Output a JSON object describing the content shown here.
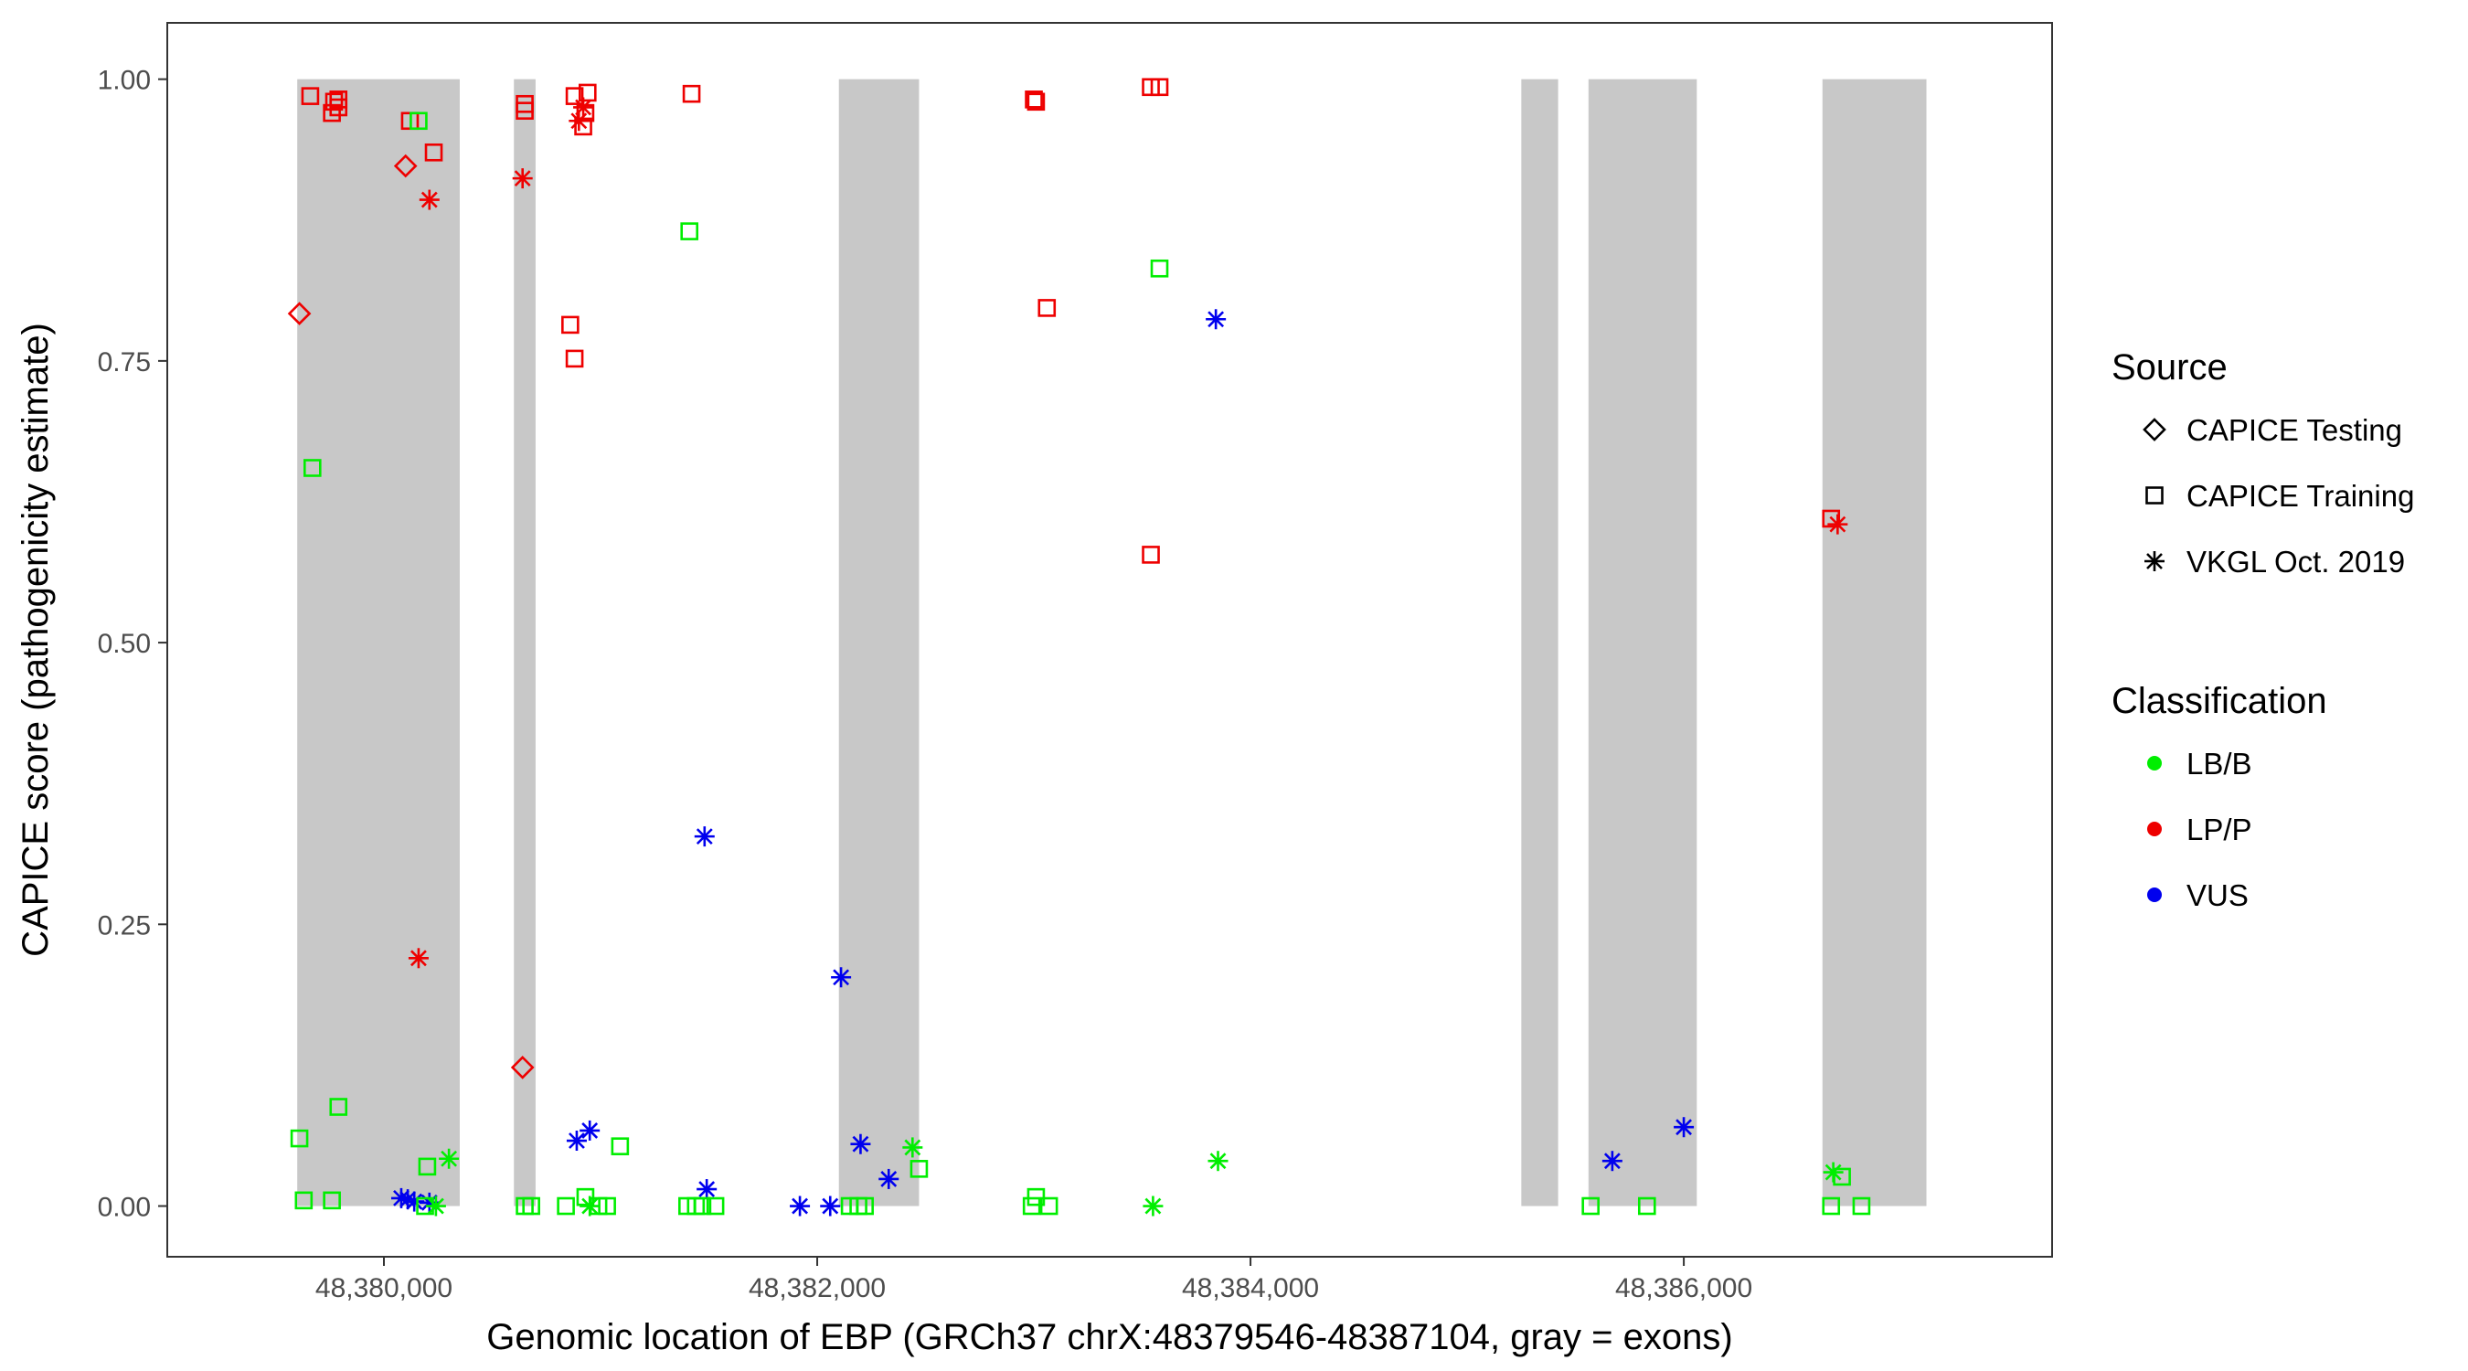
{
  "chart_data": {
    "type": "scatter",
    "xlabel": "Genomic location of EBP (GRCh37 chrX:48379546-48387104, gray = exons)",
    "ylabel": "CAPICE score (pathogenicity estimate)",
    "xlim": [
      48379000,
      48387700
    ],
    "ylim": [
      -0.045,
      1.05
    ],
    "x_ticks": [
      48380000,
      48382000,
      48384000,
      48386000
    ],
    "x_tick_labels": [
      "48,380,000",
      "48,382,000",
      "48,384,000",
      "48,386,000"
    ],
    "y_ticks": [
      0,
      0.25,
      0.5,
      0.75,
      1
    ],
    "y_tick_labels": [
      "0.00",
      "0.25",
      "0.50",
      "0.75",
      "1.00"
    ],
    "grid": false,
    "exons": [
      [
        48379600,
        48380350
      ],
      [
        48380600,
        48380700
      ],
      [
        48382100,
        48382470
      ],
      [
        48385250,
        48385420
      ],
      [
        48385560,
        48386060
      ],
      [
        48386640,
        48387120
      ]
    ],
    "exon_color": "#c8c8c8",
    "legend": {
      "source_title": "Source",
      "source_items": [
        {
          "label": "CAPICE Testing",
          "shape": "diamond"
        },
        {
          "label": "CAPICE Training",
          "shape": "square"
        },
        {
          "label": "VKGL Oct. 2019",
          "shape": "asterisk"
        }
      ],
      "class_title": "Classification",
      "class_items": [
        {
          "label": "LB/B",
          "color": "#00ee00"
        },
        {
          "label": "LP/P",
          "color": "#ee0000"
        },
        {
          "label": "VUS",
          "color": "#0000ee"
        }
      ]
    },
    "points": [
      {
        "x": 48379660,
        "y": 0.985,
        "shape": "square",
        "cls": "LP/P"
      },
      {
        "x": 48379760,
        "y": 0.97,
        "shape": "square",
        "cls": "LP/P"
      },
      {
        "x": 48379770,
        "y": 0.98,
        "shape": "square",
        "cls": "LP/P"
      },
      {
        "x": 48379790,
        "y": 0.975,
        "shape": "square",
        "cls": "LP/P"
      },
      {
        "x": 48379790,
        "y": 0.982,
        "shape": "square",
        "cls": "LP/P"
      },
      {
        "x": 48380120,
        "y": 0.963,
        "shape": "square",
        "cls": "LP/P"
      },
      {
        "x": 48380160,
        "y": 0.963,
        "shape": "square",
        "cls": "LB/B"
      },
      {
        "x": 48380100,
        "y": 0.923,
        "shape": "diamond",
        "cls": "LP/P"
      },
      {
        "x": 48380230,
        "y": 0.935,
        "shape": "square",
        "cls": "LP/P"
      },
      {
        "x": 48380210,
        "y": 0.893,
        "shape": "asterisk",
        "cls": "LP/P"
      },
      {
        "x": 48379610,
        "y": 0.792,
        "shape": "diamond",
        "cls": "LP/P"
      },
      {
        "x": 48379670,
        "y": 0.655,
        "shape": "square",
        "cls": "LB/B"
      },
      {
        "x": 48380160,
        "y": 0.22,
        "shape": "asterisk",
        "cls": "LP/P"
      },
      {
        "x": 48379610,
        "y": 0.06,
        "shape": "square",
        "cls": "LB/B"
      },
      {
        "x": 48379790,
        "y": 0.088,
        "shape": "square",
        "cls": "LB/B"
      },
      {
        "x": 48379630,
        "y": 0.005,
        "shape": "square",
        "cls": "LB/B"
      },
      {
        "x": 48379760,
        "y": 0.005,
        "shape": "square",
        "cls": "LB/B"
      },
      {
        "x": 48380200,
        "y": 0.035,
        "shape": "square",
        "cls": "LB/B"
      },
      {
        "x": 48380300,
        "y": 0.042,
        "shape": "asterisk",
        "cls": "LB/B"
      },
      {
        "x": 48380080,
        "y": 0.007,
        "shape": "asterisk",
        "cls": "VUS"
      },
      {
        "x": 48380110,
        "y": 0.006,
        "shape": "asterisk",
        "cls": "VUS"
      },
      {
        "x": 48380140,
        "y": 0.004,
        "shape": "asterisk",
        "cls": "VUS"
      },
      {
        "x": 48380210,
        "y": 0.003,
        "shape": "asterisk",
        "cls": "VUS"
      },
      {
        "x": 48380190,
        "y": 0.0,
        "shape": "square",
        "cls": "LB/B"
      },
      {
        "x": 48380240,
        "y": 0.0,
        "shape": "asterisk",
        "cls": "LB/B"
      },
      {
        "x": 48380650,
        "y": 0.978,
        "shape": "square",
        "cls": "LP/P"
      },
      {
        "x": 48380650,
        "y": 0.972,
        "shape": "square",
        "cls": "LP/P"
      },
      {
        "x": 48380640,
        "y": 0.912,
        "shape": "asterisk",
        "cls": "LP/P"
      },
      {
        "x": 48380640,
        "y": 0.123,
        "shape": "diamond",
        "cls": "LP/P"
      },
      {
        "x": 48380650,
        "y": 0.0,
        "shape": "square",
        "cls": "LB/B"
      },
      {
        "x": 48380680,
        "y": 0.0,
        "shape": "square",
        "cls": "LB/B"
      },
      {
        "x": 48380880,
        "y": 0.985,
        "shape": "square",
        "cls": "LP/P"
      },
      {
        "x": 48380940,
        "y": 0.988,
        "shape": "square",
        "cls": "LP/P"
      },
      {
        "x": 48380920,
        "y": 0.975,
        "shape": "asterisk",
        "cls": "LP/P"
      },
      {
        "x": 48380930,
        "y": 0.97,
        "shape": "square",
        "cls": "LP/P"
      },
      {
        "x": 48380900,
        "y": 0.963,
        "shape": "asterisk",
        "cls": "LP/P"
      },
      {
        "x": 48380920,
        "y": 0.958,
        "shape": "square",
        "cls": "LP/P"
      },
      {
        "x": 48380860,
        "y": 0.782,
        "shape": "square",
        "cls": "LP/P"
      },
      {
        "x": 48380880,
        "y": 0.752,
        "shape": "square",
        "cls": "LP/P"
      },
      {
        "x": 48380890,
        "y": 0.058,
        "shape": "asterisk",
        "cls": "VUS"
      },
      {
        "x": 48380950,
        "y": 0.067,
        "shape": "asterisk",
        "cls": "VUS"
      },
      {
        "x": 48381090,
        "y": 0.053,
        "shape": "square",
        "cls": "LB/B"
      },
      {
        "x": 48380930,
        "y": 0.008,
        "shape": "square",
        "cls": "LB/B"
      },
      {
        "x": 48380840,
        "y": 0.0,
        "shape": "square",
        "cls": "LB/B"
      },
      {
        "x": 48380950,
        "y": 0.0,
        "shape": "asterisk",
        "cls": "LB/B"
      },
      {
        "x": 48380990,
        "y": 0.0,
        "shape": "square",
        "cls": "LB/B"
      },
      {
        "x": 48381030,
        "y": 0.0,
        "shape": "square",
        "cls": "LB/B"
      },
      {
        "x": 48381420,
        "y": 0.987,
        "shape": "square",
        "cls": "LP/P"
      },
      {
        "x": 48381410,
        "y": 0.865,
        "shape": "square",
        "cls": "LB/B"
      },
      {
        "x": 48381480,
        "y": 0.328,
        "shape": "asterisk",
        "cls": "VUS"
      },
      {
        "x": 48381490,
        "y": 0.015,
        "shape": "asterisk",
        "cls": "VUS"
      },
      {
        "x": 48381400,
        "y": 0.0,
        "shape": "square",
        "cls": "LB/B"
      },
      {
        "x": 48381440,
        "y": 0.0,
        "shape": "square",
        "cls": "LB/B"
      },
      {
        "x": 48381470,
        "y": 0.0,
        "shape": "square",
        "cls": "LB/B"
      },
      {
        "x": 48381530,
        "y": 0.0,
        "shape": "square",
        "cls": "LB/B"
      },
      {
        "x": 48381920,
        "y": 0.0,
        "shape": "asterisk",
        "cls": "VUS"
      },
      {
        "x": 48382060,
        "y": 0.0,
        "shape": "asterisk",
        "cls": "VUS"
      },
      {
        "x": 48382110,
        "y": 0.203,
        "shape": "asterisk",
        "cls": "VUS"
      },
      {
        "x": 48382200,
        "y": 0.055,
        "shape": "asterisk",
        "cls": "VUS"
      },
      {
        "x": 48382330,
        "y": 0.024,
        "shape": "asterisk",
        "cls": "VUS"
      },
      {
        "x": 48382440,
        "y": 0.052,
        "shape": "asterisk",
        "cls": "LB/B"
      },
      {
        "x": 48382470,
        "y": 0.033,
        "shape": "square",
        "cls": "LB/B"
      },
      {
        "x": 48382150,
        "y": 0.0,
        "shape": "square",
        "cls": "LB/B"
      },
      {
        "x": 48382190,
        "y": 0.0,
        "shape": "square",
        "cls": "LB/B"
      },
      {
        "x": 48382220,
        "y": 0.0,
        "shape": "square",
        "cls": "LB/B"
      },
      {
        "x": 48383000,
        "y": 0.982,
        "shape": "square",
        "cls": "LP/P"
      },
      {
        "x": 48383010,
        "y": 0.98,
        "shape": "square",
        "cls": "LP/P"
      },
      {
        "x": 48383060,
        "y": 0.797,
        "shape": "square",
        "cls": "LP/P"
      },
      {
        "x": 48383010,
        "y": 0.008,
        "shape": "square",
        "cls": "LB/B"
      },
      {
        "x": 48382990,
        "y": 0.0,
        "shape": "square",
        "cls": "LB/B"
      },
      {
        "x": 48383070,
        "y": 0.0,
        "shape": "square",
        "cls": "LB/B"
      },
      {
        "x": 48383540,
        "y": 0.993,
        "shape": "square",
        "cls": "LP/P"
      },
      {
        "x": 48383580,
        "y": 0.993,
        "shape": "square",
        "cls": "LP/P"
      },
      {
        "x": 48383580,
        "y": 0.832,
        "shape": "square",
        "cls": "LB/B"
      },
      {
        "x": 48383840,
        "y": 0.787,
        "shape": "asterisk",
        "cls": "VUS"
      },
      {
        "x": 48383540,
        "y": 0.578,
        "shape": "square",
        "cls": "LP/P"
      },
      {
        "x": 48383850,
        "y": 0.04,
        "shape": "asterisk",
        "cls": "LB/B"
      },
      {
        "x": 48383550,
        "y": 0.0,
        "shape": "asterisk",
        "cls": "LB/B"
      },
      {
        "x": 48385670,
        "y": 0.04,
        "shape": "asterisk",
        "cls": "VUS"
      },
      {
        "x": 48386000,
        "y": 0.07,
        "shape": "asterisk",
        "cls": "VUS"
      },
      {
        "x": 48385570,
        "y": 0.0,
        "shape": "square",
        "cls": "LB/B"
      },
      {
        "x": 48385830,
        "y": 0.0,
        "shape": "square",
        "cls": "LB/B"
      },
      {
        "x": 48386680,
        "y": 0.61,
        "shape": "square",
        "cls": "LP/P"
      },
      {
        "x": 48386710,
        "y": 0.605,
        "shape": "asterisk",
        "cls": "LP/P"
      },
      {
        "x": 48386690,
        "y": 0.03,
        "shape": "asterisk",
        "cls": "LB/B"
      },
      {
        "x": 48386730,
        "y": 0.026,
        "shape": "square",
        "cls": "LB/B"
      },
      {
        "x": 48386680,
        "y": 0.0,
        "shape": "square",
        "cls": "LB/B"
      },
      {
        "x": 48386820,
        "y": 0.0,
        "shape": "square",
        "cls": "LB/B"
      }
    ]
  }
}
